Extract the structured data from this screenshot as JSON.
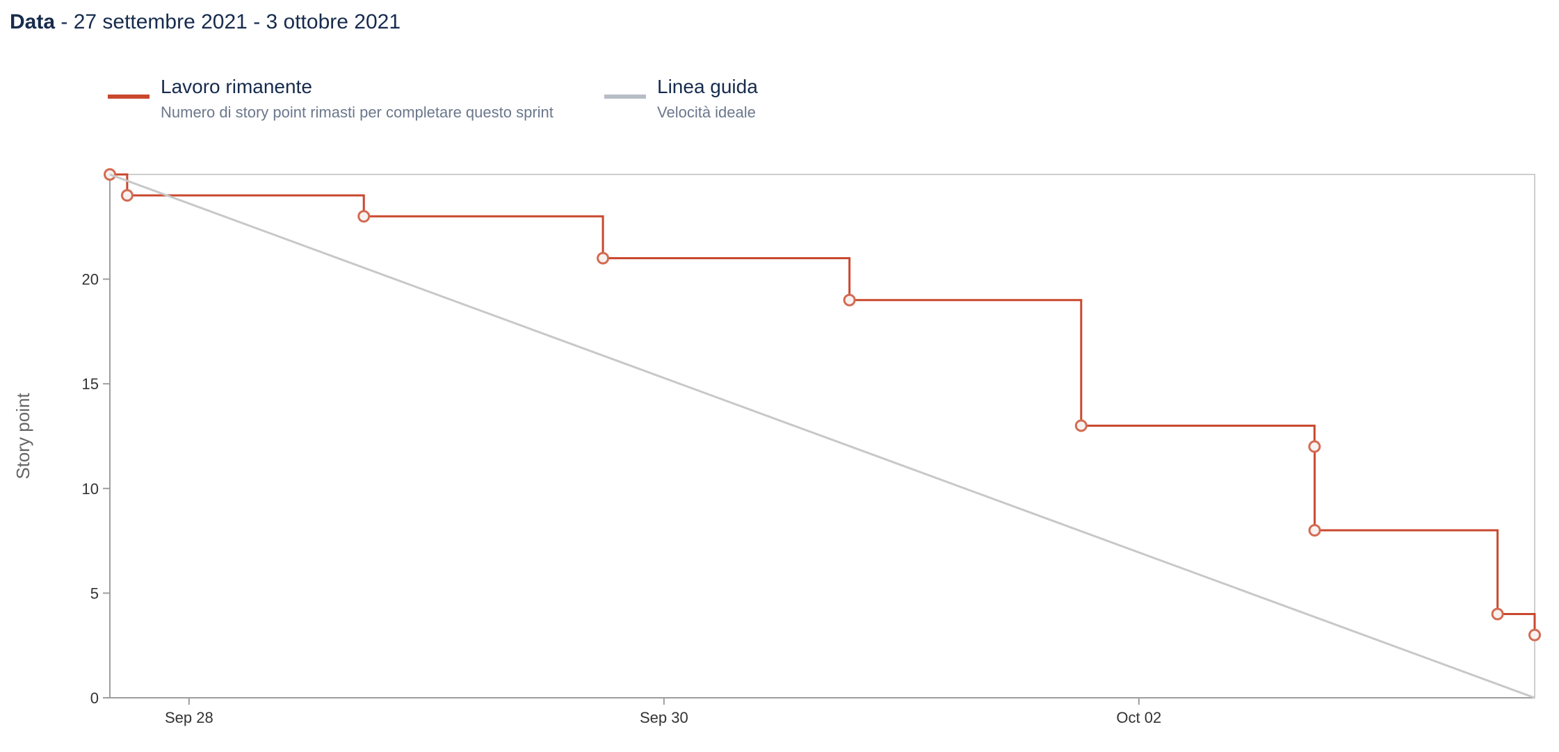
{
  "header": {
    "label": "Data",
    "range": " - 27 settembre 2021 - 3 ottobre 2021"
  },
  "legend": [
    {
      "title": "Lavoro rimanente",
      "subtitle": "Numero di story point rimasti per completare questo sprint",
      "color": "#c9482e"
    },
    {
      "title": "Linea guida",
      "subtitle": "Velocità ideale",
      "color": "#b8bcc6"
    }
  ],
  "chart_data": {
    "type": "line",
    "ylabel": "Story point",
    "xlabel": "",
    "ylim": [
      0,
      25
    ],
    "yticks": [
      0,
      5,
      10,
      15,
      20
    ],
    "xlim": [
      "2021-09-27T16:00",
      "2021-10-03T16:00"
    ],
    "xticks": [
      {
        "x": "2021-09-28T00:00",
        "label": "Sep 28"
      },
      {
        "x": "2021-09-30T00:00",
        "label": "Sep 30"
      },
      {
        "x": "2021-10-02T00:00",
        "label": "Oct 02"
      }
    ],
    "grid": false,
    "series": [
      {
        "name": "Lavoro rimanente",
        "color": "#c9482e",
        "step": true,
        "points": [
          {
            "x": "2021-09-27T16:00",
            "y": 25
          },
          {
            "x": "2021-09-27T17:45",
            "y": 24
          },
          {
            "x": "2021-09-28T17:40",
            "y": 23
          },
          {
            "x": "2021-09-29T17:50",
            "y": 21
          },
          {
            "x": "2021-09-30T18:45",
            "y": 19
          },
          {
            "x": "2021-10-01T18:10",
            "y": 13
          },
          {
            "x": "2021-10-02T17:45",
            "y": 12
          },
          {
            "x": "2021-10-02T17:46",
            "y": 8
          },
          {
            "x": "2021-10-03T12:15",
            "y": 4
          },
          {
            "x": "2021-10-03T16:00",
            "y": 3
          }
        ]
      },
      {
        "name": "Linea guida",
        "color": "#c8c8c8",
        "step": false,
        "points": [
          {
            "x": "2021-09-27T16:00",
            "y": 25
          },
          {
            "x": "2021-10-03T16:00",
            "y": 0
          }
        ]
      }
    ]
  }
}
